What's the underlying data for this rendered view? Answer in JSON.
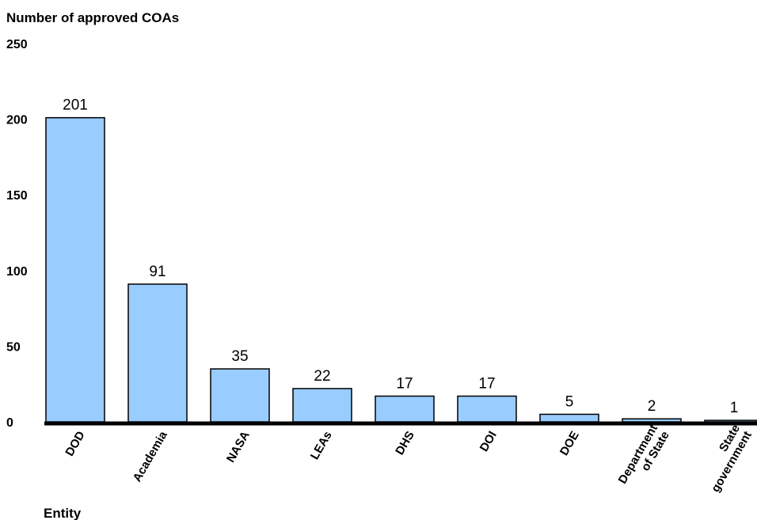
{
  "chart_data": {
    "type": "bar",
    "ylabel": "Number of approved COAs",
    "xlabel": "Entity",
    "categories": [
      "DOD",
      "Academia",
      "NASA",
      "LEAs",
      "DHS",
      "DOI",
      "DOE",
      "Department of State",
      "State government"
    ],
    "category_lines": [
      [
        "DOD"
      ],
      [
        "Academia"
      ],
      [
        "NASA"
      ],
      [
        "LEAs"
      ],
      [
        "DHS"
      ],
      [
        "DOI"
      ],
      [
        "DOE"
      ],
      [
        "Department",
        "of State"
      ],
      [
        "State",
        "government"
      ]
    ],
    "values": [
      201,
      91,
      35,
      22,
      17,
      17,
      5,
      2,
      1
    ],
    "ylim": [
      0,
      250
    ],
    "yticks": [
      0,
      50,
      100,
      150,
      200,
      250
    ],
    "bar_color": "#99ccff",
    "grid": false,
    "legend": "none"
  }
}
